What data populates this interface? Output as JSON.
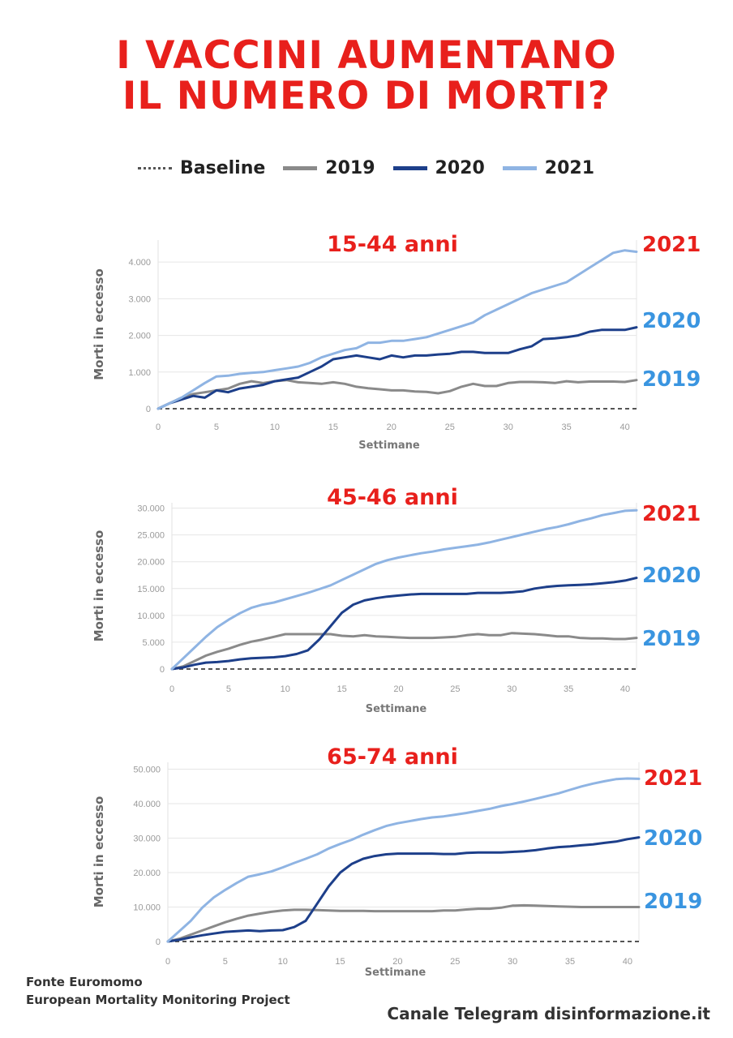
{
  "headline": {
    "line1": "I VACCINI AUMENTANO",
    "line2": "IL NUMERO DI MORTI?"
  },
  "legend": {
    "items": [
      {
        "label": "Baseline",
        "style": "dotted",
        "color": "#555555"
      },
      {
        "label": "2019",
        "style": "solid",
        "color": "#8a8a8a"
      },
      {
        "label": "2020",
        "style": "solid",
        "color": "#1d3f8a"
      },
      {
        "label": "2021",
        "style": "solid",
        "color": "#8fb4e3"
      }
    ]
  },
  "colors": {
    "accent_red": "#e8201c",
    "label_blue": "#3a95e0",
    "baseline": "#555555",
    "grid": "#e6e6e6"
  },
  "chart_data": [
    {
      "type": "line",
      "title": "15-44 anni",
      "xlabel": "Settimane",
      "ylabel": "Morti in eccesso",
      "xlim": [
        0,
        41
      ],
      "ylim": [
        0,
        4600
      ],
      "xticks": [
        0,
        5,
        10,
        15,
        20,
        25,
        30,
        35,
        40
      ],
      "yticks": [
        0,
        1000,
        2000,
        3000,
        4000
      ],
      "ytick_labels": [
        "0",
        "1.000",
        "2.000",
        "3.000",
        "4.000"
      ],
      "grid": true,
      "baseline": 0,
      "series": [
        {
          "name": "2019",
          "color": "#8a8a8a",
          "end_label": "2019",
          "x": [
            0,
            1,
            2,
            3,
            4,
            5,
            6,
            7,
            8,
            9,
            10,
            11,
            12,
            13,
            14,
            15,
            16,
            17,
            18,
            19,
            20,
            21,
            22,
            23,
            24,
            25,
            26,
            27,
            28,
            29,
            30,
            31,
            32,
            33,
            34,
            35,
            36,
            37,
            38,
            39,
            40,
            41
          ],
          "y": [
            0,
            150,
            300,
            400,
            450,
            500,
            550,
            680,
            750,
            700,
            750,
            780,
            720,
            700,
            680,
            720,
            680,
            600,
            560,
            530,
            500,
            500,
            470,
            460,
            420,
            480,
            600,
            680,
            620,
            620,
            700,
            730,
            730,
            720,
            700,
            750,
            720,
            740,
            740,
            740,
            730,
            780
          ]
        },
        {
          "name": "2020",
          "color": "#1d3f8a",
          "end_label": "2020",
          "x": [
            0,
            1,
            2,
            3,
            4,
            5,
            6,
            7,
            8,
            9,
            10,
            11,
            12,
            13,
            14,
            15,
            16,
            17,
            18,
            19,
            20,
            21,
            22,
            23,
            24,
            25,
            26,
            27,
            28,
            29,
            30,
            31,
            32,
            33,
            34,
            35,
            36,
            37,
            38,
            39,
            40,
            41
          ],
          "y": [
            0,
            150,
            250,
            350,
            300,
            500,
            450,
            550,
            600,
            650,
            750,
            800,
            850,
            1000,
            1150,
            1350,
            1400,
            1450,
            1400,
            1350,
            1450,
            1400,
            1450,
            1450,
            1480,
            1500,
            1550,
            1550,
            1520,
            1520,
            1520,
            1620,
            1700,
            1900,
            1920,
            1950,
            2000,
            2100,
            2150,
            2150,
            2150,
            2220
          ]
        },
        {
          "name": "2021",
          "color": "#8fb4e3",
          "end_label": "2021",
          "x": [
            0,
            1,
            2,
            3,
            4,
            5,
            6,
            7,
            8,
            9,
            10,
            11,
            12,
            13,
            14,
            15,
            16,
            17,
            18,
            19,
            20,
            21,
            22,
            23,
            24,
            25,
            26,
            27,
            28,
            29,
            30,
            31,
            32,
            33,
            34,
            35,
            36,
            37,
            38,
            39,
            40,
            41
          ],
          "y": [
            0,
            150,
            300,
            500,
            700,
            880,
            900,
            950,
            980,
            1000,
            1050,
            1100,
            1150,
            1250,
            1400,
            1500,
            1600,
            1650,
            1800,
            1800,
            1850,
            1850,
            1900,
            1950,
            2050,
            2150,
            2250,
            2350,
            2550,
            2700,
            2850,
            3000,
            3150,
            3250,
            3350,
            3450,
            3650,
            3850,
            4050,
            4250,
            4320,
            4280
          ]
        }
      ]
    },
    {
      "type": "line",
      "title": "45-46 anni",
      "xlabel": "Settimane",
      "ylabel": "Morti in eccesso",
      "xlim": [
        0,
        41
      ],
      "ylim": [
        0,
        31000
      ],
      "xticks": [
        0,
        5,
        10,
        15,
        20,
        25,
        30,
        35,
        40
      ],
      "yticks": [
        0,
        5000,
        10000,
        15000,
        20000,
        25000,
        30000
      ],
      "ytick_labels": [
        "0",
        "5.000",
        "10.000",
        "15.000",
        "20.000",
        "25.000",
        "30.000"
      ],
      "grid": true,
      "baseline": 0,
      "series": [
        {
          "name": "2019",
          "color": "#8a8a8a",
          "end_label": "2019",
          "x": [
            0,
            1,
            2,
            3,
            4,
            5,
            6,
            7,
            8,
            9,
            10,
            11,
            12,
            13,
            14,
            15,
            16,
            17,
            18,
            19,
            20,
            21,
            22,
            23,
            24,
            25,
            26,
            27,
            28,
            29,
            30,
            31,
            32,
            33,
            34,
            35,
            36,
            37,
            38,
            39,
            40,
            41
          ],
          "y": [
            0,
            500,
            1500,
            2500,
            3200,
            3800,
            4500,
            5100,
            5500,
            6000,
            6500,
            6500,
            6500,
            6500,
            6500,
            6200,
            6100,
            6300,
            6100,
            6000,
            5900,
            5800,
            5800,
            5800,
            5900,
            6000,
            6300,
            6500,
            6300,
            6300,
            6700,
            6600,
            6500,
            6300,
            6100,
            6100,
            5800,
            5700,
            5700,
            5600,
            5600,
            5800
          ]
        },
        {
          "name": "2020",
          "color": "#1d3f8a",
          "end_label": "2020",
          "x": [
            0,
            1,
            2,
            3,
            4,
            5,
            6,
            7,
            8,
            9,
            10,
            11,
            12,
            13,
            14,
            15,
            16,
            17,
            18,
            19,
            20,
            21,
            22,
            23,
            24,
            25,
            26,
            27,
            28,
            29,
            30,
            31,
            32,
            33,
            34,
            35,
            36,
            37,
            38,
            39,
            40,
            41
          ],
          "y": [
            0,
            300,
            800,
            1200,
            1300,
            1500,
            1800,
            2000,
            2100,
            2200,
            2400,
            2800,
            3500,
            5500,
            8000,
            10500,
            12000,
            12800,
            13200,
            13500,
            13700,
            13900,
            14000,
            14000,
            14000,
            14000,
            14000,
            14200,
            14200,
            14200,
            14300,
            14500,
            15000,
            15300,
            15500,
            15600,
            15700,
            15800,
            16000,
            16200,
            16500,
            17000
          ]
        },
        {
          "name": "2021",
          "color": "#8fb4e3",
          "end_label": "2021",
          "x": [
            0,
            1,
            2,
            3,
            4,
            5,
            6,
            7,
            8,
            9,
            10,
            11,
            12,
            13,
            14,
            15,
            16,
            17,
            18,
            19,
            20,
            21,
            22,
            23,
            24,
            25,
            26,
            27,
            28,
            29,
            30,
            31,
            32,
            33,
            34,
            35,
            36,
            37,
            38,
            39,
            40,
            41
          ],
          "y": [
            0,
            2000,
            4000,
            6000,
            7800,
            9200,
            10400,
            11400,
            12000,
            12400,
            13000,
            13600,
            14200,
            14900,
            15600,
            16600,
            17600,
            18600,
            19600,
            20300,
            20800,
            21200,
            21600,
            21900,
            22300,
            22600,
            22900,
            23200,
            23600,
            24100,
            24600,
            25100,
            25600,
            26100,
            26500,
            27000,
            27600,
            28100,
            28700,
            29100,
            29500,
            29600
          ]
        }
      ]
    },
    {
      "type": "line",
      "title": "65-74 anni",
      "xlabel": "Settimane",
      "ylabel": "Morti in eccesso",
      "xlim": [
        0,
        41
      ],
      "ylim": [
        0,
        52000
      ],
      "xticks": [
        0,
        5,
        10,
        15,
        20,
        25,
        30,
        35,
        40
      ],
      "yticks": [
        0,
        10000,
        20000,
        30000,
        40000,
        50000
      ],
      "ytick_labels": [
        "0",
        "10.000",
        "20.000",
        "30.000",
        "40.000",
        "50.000"
      ],
      "grid": true,
      "baseline": 0,
      "series": [
        {
          "name": "2019",
          "color": "#8a8a8a",
          "end_label": "2019",
          "x": [
            0,
            1,
            2,
            3,
            4,
            5,
            6,
            7,
            8,
            9,
            10,
            11,
            12,
            13,
            14,
            15,
            16,
            17,
            18,
            19,
            20,
            21,
            22,
            23,
            24,
            25,
            26,
            27,
            28,
            29,
            30,
            31,
            32,
            33,
            34,
            35,
            36,
            37,
            38,
            39,
            40,
            41
          ],
          "y": [
            0,
            800,
            2000,
            3200,
            4400,
            5600,
            6600,
            7500,
            8100,
            8600,
            9000,
            9200,
            9200,
            9100,
            9000,
            8900,
            8900,
            8900,
            8800,
            8800,
            8800,
            8800,
            8800,
            8800,
            9000,
            9000,
            9300,
            9500,
            9500,
            9800,
            10400,
            10500,
            10400,
            10300,
            10200,
            10100,
            10000,
            10000,
            10000,
            10000,
            10000,
            10000
          ]
        },
        {
          "name": "2020",
          "color": "#1d3f8a",
          "end_label": "2020",
          "x": [
            0,
            1,
            2,
            3,
            4,
            5,
            6,
            7,
            8,
            9,
            10,
            11,
            12,
            13,
            14,
            15,
            16,
            17,
            18,
            19,
            20,
            21,
            22,
            23,
            24,
            25,
            26,
            27,
            28,
            29,
            30,
            31,
            32,
            33,
            34,
            35,
            36,
            37,
            38,
            39,
            40,
            41
          ],
          "y": [
            0,
            500,
            1200,
            1800,
            2300,
            2800,
            3000,
            3200,
            3000,
            3200,
            3300,
            4200,
            6000,
            11000,
            16000,
            20000,
            22500,
            24000,
            24800,
            25300,
            25500,
            25500,
            25500,
            25500,
            25400,
            25400,
            25700,
            25800,
            25800,
            25800,
            26000,
            26200,
            26500,
            27000,
            27400,
            27600,
            27900,
            28200,
            28600,
            29000,
            29700,
            30200
          ]
        },
        {
          "name": "2021",
          "color": "#8fb4e3",
          "end_label": "2021",
          "x": [
            0,
            1,
            2,
            3,
            4,
            5,
            6,
            7,
            8,
            9,
            10,
            11,
            12,
            13,
            14,
            15,
            16,
            17,
            18,
            19,
            20,
            21,
            22,
            23,
            24,
            25,
            26,
            27,
            28,
            29,
            30,
            31,
            32,
            33,
            34,
            35,
            36,
            37,
            38,
            39,
            40,
            41
          ],
          "y": [
            0,
            3000,
            6000,
            9800,
            12800,
            15000,
            17000,
            18800,
            19500,
            20300,
            21500,
            22800,
            24000,
            25300,
            27000,
            28300,
            29500,
            31000,
            32300,
            33500,
            34300,
            34900,
            35500,
            36000,
            36300,
            36800,
            37300,
            37900,
            38500,
            39300,
            39900,
            40600,
            41400,
            42200,
            43000,
            44000,
            45000,
            45800,
            46500,
            47100,
            47300,
            47200
          ]
        }
      ]
    }
  ],
  "footer": {
    "source_line1": "Fonte Euromomo",
    "source_line2": "European Mortality Monitoring Project",
    "credit": "Canale Telegram disinformazione.it"
  }
}
